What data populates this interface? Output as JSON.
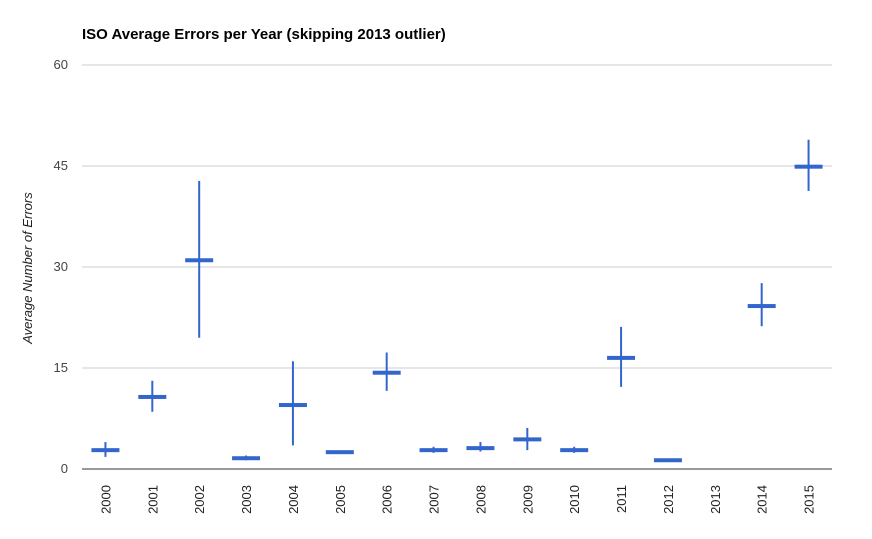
{
  "chart_data": {
    "type": "candlestick",
    "title": "ISO Average Errors per Year (skipping 2013 outlier)",
    "xlabel": "",
    "ylabel": "Average Number of Errors",
    "ylim": [
      0,
      60
    ],
    "yticks": [
      0,
      15,
      30,
      45,
      60
    ],
    "grid": true,
    "legend": "none",
    "color": "#3366cc",
    "categories": [
      "2000",
      "2001",
      "2002",
      "2003",
      "2004",
      "2005",
      "2006",
      "2007",
      "2008",
      "2009",
      "2010",
      "2011",
      "2012",
      "2013",
      "2014",
      "2015"
    ],
    "points": [
      {
        "year": "2000",
        "mean": 2.8,
        "low": 1.8,
        "high": 4.0
      },
      {
        "year": "2001",
        "mean": 10.7,
        "low": 8.5,
        "high": 13.1
      },
      {
        "year": "2002",
        "mean": 31.0,
        "low": 19.5,
        "high": 42.8
      },
      {
        "year": "2003",
        "mean": 1.6,
        "low": 1.3,
        "high": 2.0
      },
      {
        "year": "2004",
        "mean": 9.5,
        "low": 3.5,
        "high": 16.0
      },
      {
        "year": "2005",
        "mean": 2.5,
        "low": 2.3,
        "high": 2.7
      },
      {
        "year": "2006",
        "mean": 14.3,
        "low": 11.6,
        "high": 17.3
      },
      {
        "year": "2007",
        "mean": 2.8,
        "low": 2.4,
        "high": 3.3
      },
      {
        "year": "2008",
        "mean": 3.1,
        "low": 2.6,
        "high": 4.0
      },
      {
        "year": "2009",
        "mean": 4.4,
        "low": 2.8,
        "high": 6.1
      },
      {
        "year": "2010",
        "mean": 2.8,
        "low": 2.4,
        "high": 3.3
      },
      {
        "year": "2011",
        "mean": 16.5,
        "low": 12.2,
        "high": 21.1
      },
      {
        "year": "2012",
        "mean": 1.3,
        "low": 1.1,
        "high": 1.5
      },
      {
        "year": "2013",
        "mean": null,
        "low": null,
        "high": null
      },
      {
        "year": "2014",
        "mean": 24.2,
        "low": 21.2,
        "high": 27.6
      },
      {
        "year": "2015",
        "mean": 44.9,
        "low": 41.3,
        "high": 48.9
      }
    ]
  }
}
